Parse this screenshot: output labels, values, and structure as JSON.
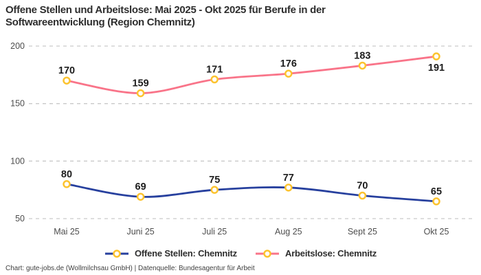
{
  "title": "Offene Stellen und Arbeitslose: Mai 2025 - Okt 2025 für Berufe in der Softwareentwicklung (Region Chemnitz)",
  "footer": "Chart: gute-jobs.de (Wollmilchsau GmbH) | Datenquelle: Bundesagentur für Arbeit",
  "colors": {
    "series_blue": "#27409e",
    "series_pink": "#f97489",
    "marker_ring": "#fcc32f",
    "marker_fill": "#ffffff",
    "grid": "#c9c9c9",
    "axis_text": "#4d4d4d",
    "data_label": "#1d1d1d"
  },
  "chart_data": {
    "type": "line",
    "title": "Offene Stellen und Arbeitslose: Mai 2025 - Okt 2025 für Berufe in der Softwareentwicklung (Region Chemnitz)",
    "categories": [
      "Mai 25",
      "Juni 25",
      "Juli 25",
      "Aug 25",
      "Sept 25",
      "Okt 25"
    ],
    "series": [
      {
        "name": "Offene Stellen: Chemnitz",
        "values": [
          80,
          69,
          75,
          77,
          70,
          65
        ],
        "color_key": "series_blue",
        "label_below_indices": []
      },
      {
        "name": "Arbeitslose: Chemnitz",
        "values": [
          170,
          159,
          171,
          176,
          183,
          191
        ],
        "color_key": "series_pink",
        "label_below_indices": [
          5
        ]
      }
    ],
    "ylim": [
      50,
      200
    ],
    "yticks": [
      50,
      100,
      150,
      200
    ],
    "grid": "horizontal-dashed",
    "legend_position": "bottom",
    "data_labels": true
  }
}
